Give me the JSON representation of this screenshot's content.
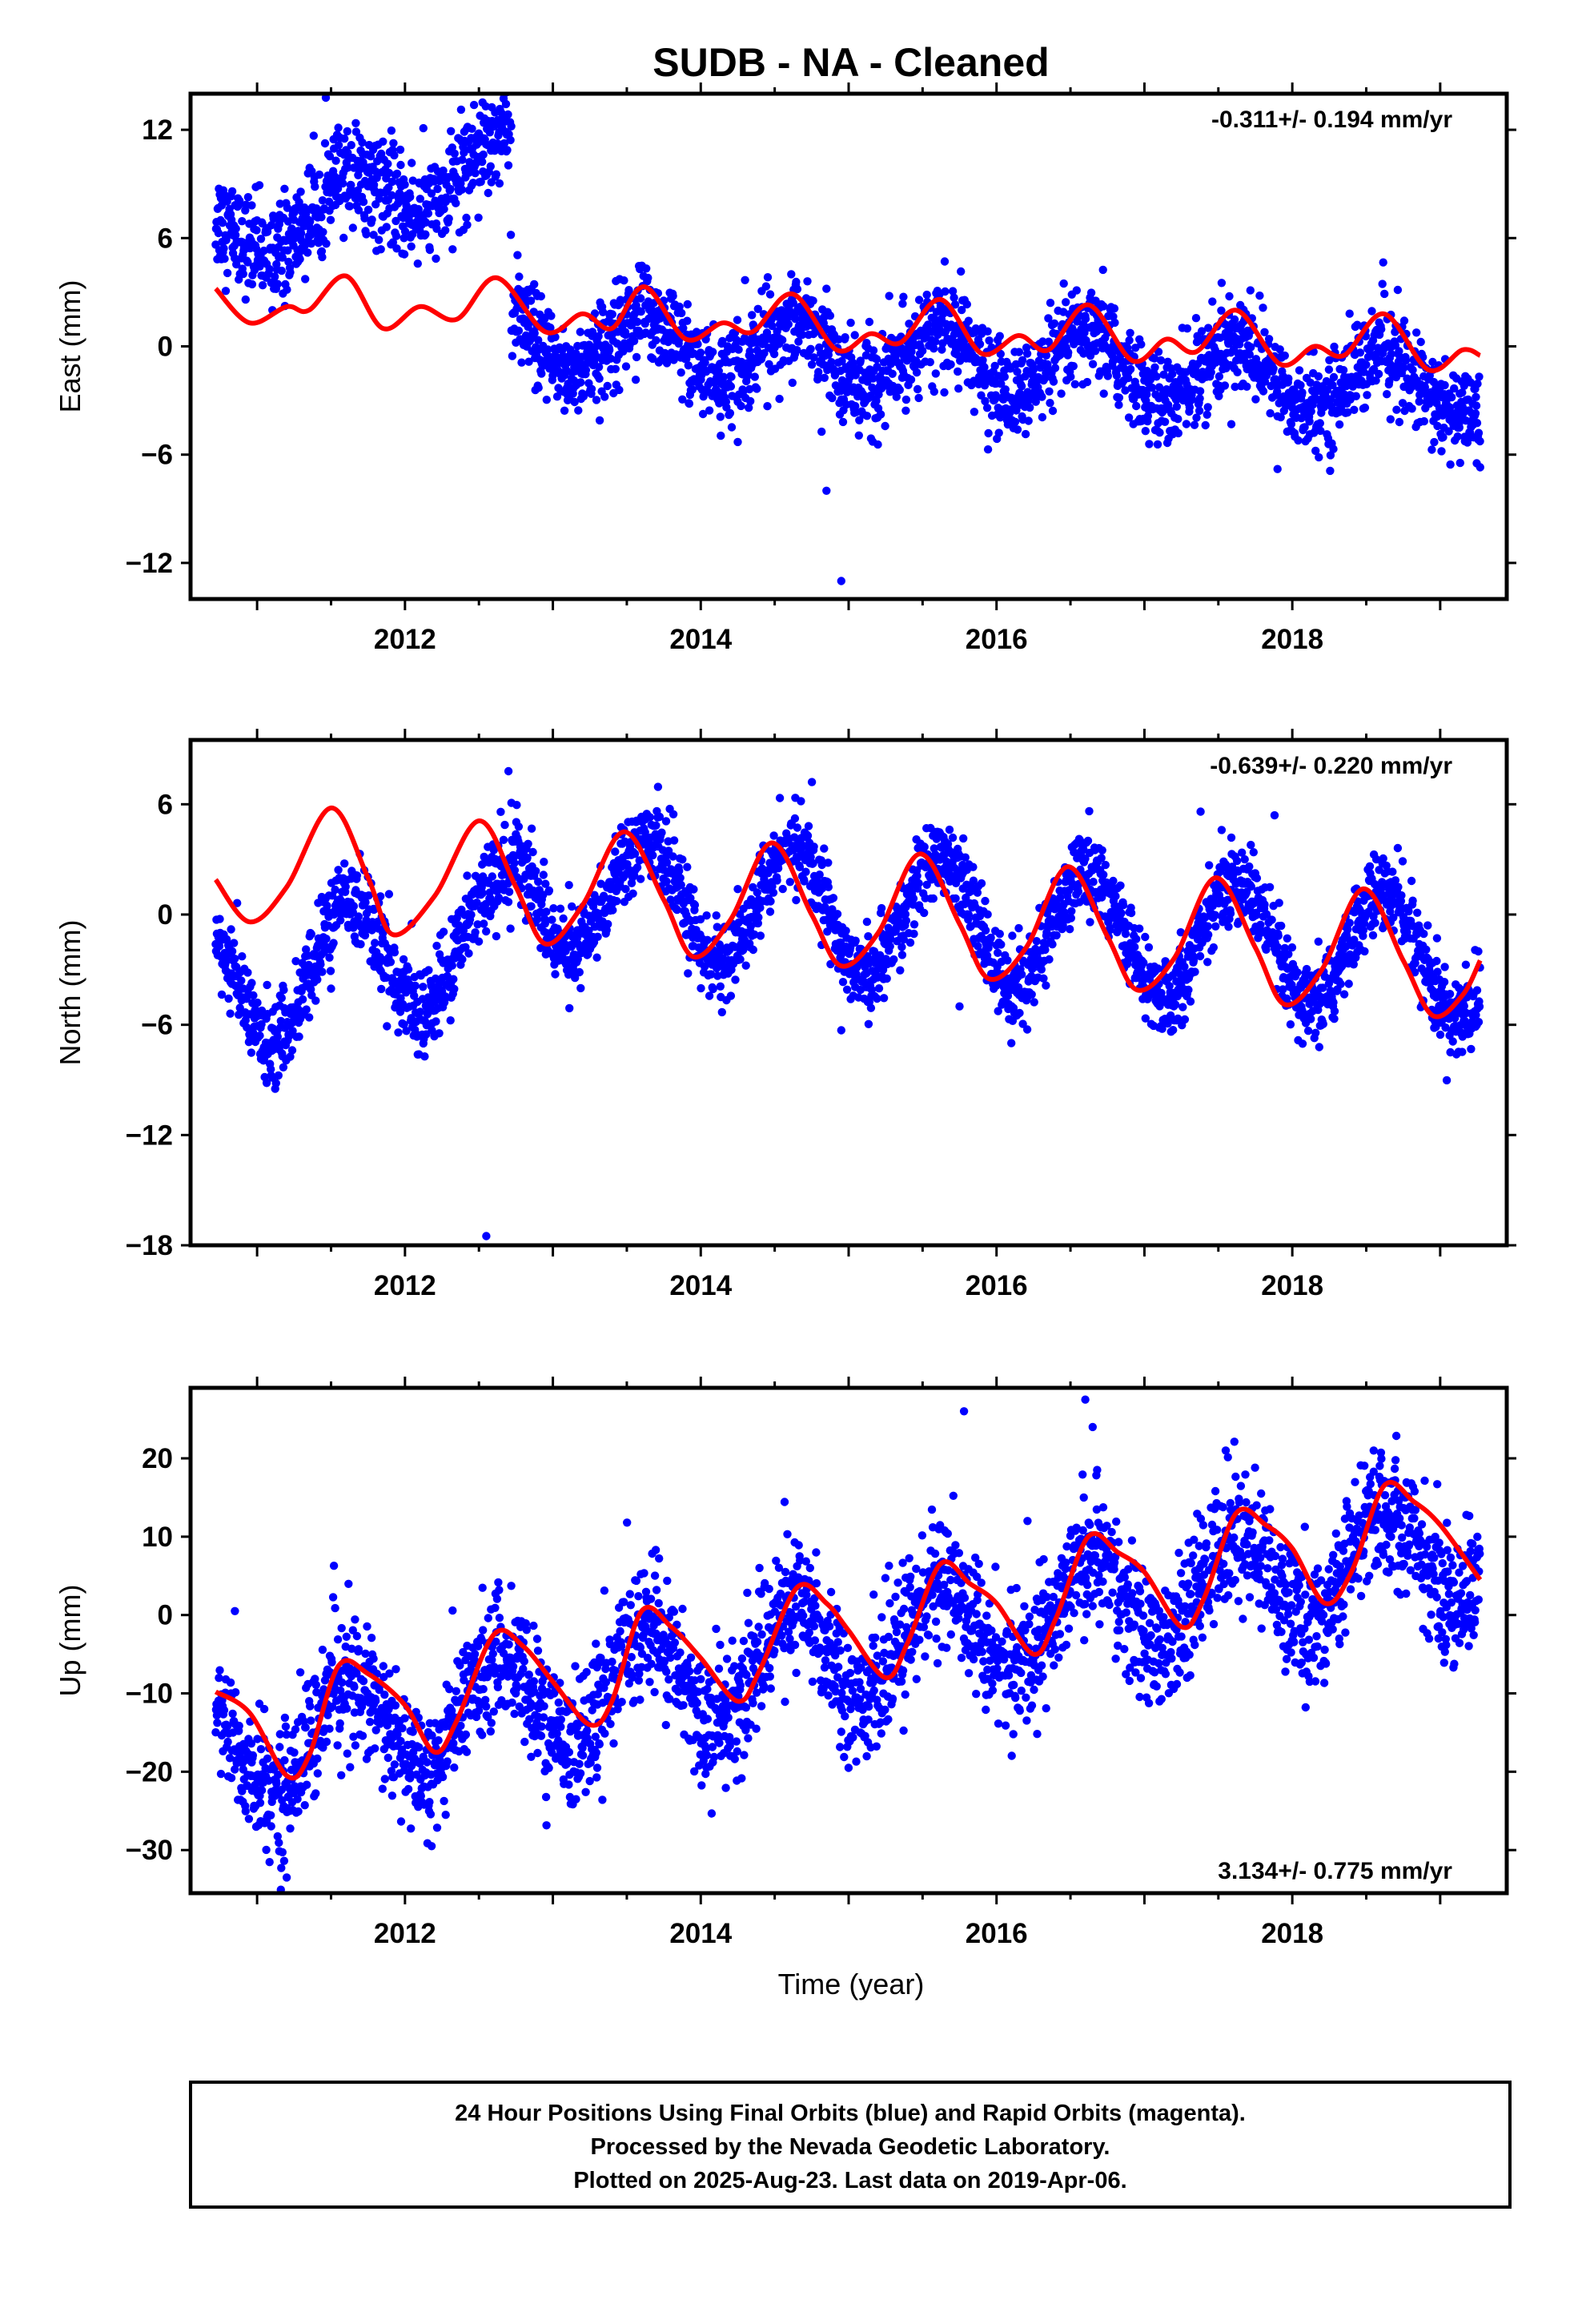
{
  "title": "SUDB  - NA - Cleaned",
  "xlabel": "Time (year)",
  "footer": {
    "line1": "24 Hour Positions Using Final Orbits (blue) and Rapid Orbits (magenta).",
    "line2": "Processed by the Nevada Geodetic Laboratory.",
    "line3": "Plotted on 2025-Aug-23. Last data on 2019-Apr-06."
  },
  "colors": {
    "data": "#0000ff",
    "model": "#ff0000",
    "axis": "#000000"
  },
  "chart_data": [
    {
      "type": "scatter",
      "component": "east",
      "ylabel": "East (mm)",
      "rate_label": "-0.311+/- 0.194 mm/yr",
      "xlim": [
        2010.55,
        2019.45
      ],
      "ylim": [
        -14,
        14
      ],
      "yticks": [
        -12,
        -6,
        0,
        6,
        12
      ],
      "xticks": [
        2012,
        2014,
        2016,
        2018
      ],
      "data_range": [
        2010.72,
        2019.27
      ],
      "series": [
        {
          "kind": "points",
          "color": "#0000ff",
          "segments": [
            {
              "from": 2010.72,
              "to": 2012.72,
              "trend_start": 5.8,
              "trend_end": 10.5,
              "annual_amp": 1.6,
              "noise": 1.4
            },
            {
              "from": 2012.72,
              "to": 2019.27,
              "trend_start": 0.5,
              "trend_end": -2.3,
              "annual_amp": 1.7,
              "noise": 1.3
            }
          ],
          "outliers": [
            [
              2014.25,
              -5.3
            ],
            [
              2014.85,
              -8.0
            ],
            [
              2014.95,
              -13.0
            ],
            [
              2019.27,
              -6.7
            ],
            [
              2017.9,
              -6.8
            ]
          ]
        },
        {
          "kind": "model",
          "color": "#ff0000",
          "points": [
            [
              2010.72,
              3.2
            ],
            [
              2010.95,
              1.3
            ],
            [
              2011.2,
              2.2
            ],
            [
              2011.35,
              2.0
            ],
            [
              2011.6,
              3.9
            ],
            [
              2011.85,
              1.0
            ],
            [
              2012.1,
              2.2
            ],
            [
              2012.35,
              1.5
            ],
            [
              2012.62,
              3.8
            ],
            [
              2012.95,
              0.8
            ],
            [
              2013.2,
              1.8
            ],
            [
              2013.4,
              1.0
            ],
            [
              2013.62,
              3.3
            ],
            [
              2013.9,
              0.4
            ],
            [
              2014.15,
              1.3
            ],
            [
              2014.35,
              0.8
            ],
            [
              2014.62,
              2.9
            ],
            [
              2014.92,
              -0.2
            ],
            [
              2015.15,
              0.7
            ],
            [
              2015.35,
              0.2
            ],
            [
              2015.62,
              2.6
            ],
            [
              2015.9,
              -0.4
            ],
            [
              2016.15,
              0.6
            ],
            [
              2016.35,
              -0.2
            ],
            [
              2016.62,
              2.3
            ],
            [
              2016.92,
              -0.8
            ],
            [
              2017.15,
              0.4
            ],
            [
              2017.35,
              -0.3
            ],
            [
              2017.62,
              2.0
            ],
            [
              2017.92,
              -1.0
            ],
            [
              2018.15,
              0.0
            ],
            [
              2018.35,
              -0.5
            ],
            [
              2018.62,
              1.8
            ],
            [
              2018.92,
              -1.3
            ],
            [
              2019.15,
              -0.2
            ],
            [
              2019.27,
              -0.5
            ]
          ]
        }
      ]
    },
    {
      "type": "scatter",
      "component": "north",
      "ylabel": "North (mm)",
      "rate_label": "-0.639+/- 0.220 mm/yr",
      "xlim": [
        2010.55,
        2019.45
      ],
      "ylim": [
        -18,
        9.5
      ],
      "yticks": [
        -18,
        -12,
        -6,
        0,
        6
      ],
      "xticks": [
        2012,
        2014,
        2016,
        2018
      ],
      "data_range": [
        2010.72,
        2019.27
      ],
      "series": [
        {
          "kind": "points",
          "color": "#0000ff",
          "segments": [
            {
              "from": 2010.72,
              "to": 2012.72,
              "trend_start": -4.0,
              "trend_end": -1.0,
              "annual_amp": 3.4,
              "noise": 1.2
            },
            {
              "from": 2012.72,
              "to": 2019.27,
              "trend_start": 1.5,
              "trend_end": -2.5,
              "annual_amp": 3.3,
              "noise": 1.1
            }
          ],
          "outliers": [
            [
              2012.55,
              -17.5
            ],
            [
              2012.7,
              7.8
            ],
            [
              2015.75,
              -5.0
            ],
            [
              2016.1,
              -7.0
            ],
            [
              2017.38,
              5.6
            ],
            [
              2017.88,
              5.4
            ],
            [
              2014.95,
              -6.3
            ]
          ]
        },
        {
          "kind": "model",
          "color": "#ff0000",
          "points": [
            [
              2010.72,
              1.9
            ],
            [
              2010.95,
              -0.4
            ],
            [
              2011.2,
              1.5
            ],
            [
              2011.5,
              5.8
            ],
            [
              2011.75,
              2.0
            ],
            [
              2011.92,
              -1.1
            ],
            [
              2012.2,
              1.0
            ],
            [
              2012.5,
              5.1
            ],
            [
              2012.75,
              1.5
            ],
            [
              2012.95,
              -1.6
            ],
            [
              2013.2,
              0.5
            ],
            [
              2013.48,
              4.5
            ],
            [
              2013.75,
              0.8
            ],
            [
              2013.95,
              -2.3
            ],
            [
              2014.2,
              -0.3
            ],
            [
              2014.48,
              3.9
            ],
            [
              2014.75,
              0.0
            ],
            [
              2014.95,
              -2.8
            ],
            [
              2015.2,
              -1.0
            ],
            [
              2015.48,
              3.3
            ],
            [
              2015.75,
              -0.5
            ],
            [
              2015.95,
              -3.5
            ],
            [
              2016.2,
              -1.8
            ],
            [
              2016.48,
              2.6
            ],
            [
              2016.75,
              -1.2
            ],
            [
              2016.95,
              -4.1
            ],
            [
              2017.2,
              -2.4
            ],
            [
              2017.48,
              2.0
            ],
            [
              2017.75,
              -1.8
            ],
            [
              2017.95,
              -4.9
            ],
            [
              2018.2,
              -3.0
            ],
            [
              2018.48,
              1.4
            ],
            [
              2018.75,
              -2.5
            ],
            [
              2018.95,
              -5.5
            ],
            [
              2019.15,
              -4.4
            ],
            [
              2019.27,
              -2.5
            ]
          ]
        }
      ]
    },
    {
      "type": "scatter",
      "component": "up",
      "ylabel": "Up (mm)",
      "rate_label": "3.134+/- 0.775 mm/yr",
      "xlim": [
        2010.55,
        2019.45
      ],
      "ylim": [
        -35.5,
        29
      ],
      "yticks": [
        -30,
        -20,
        -10,
        0,
        10,
        20
      ],
      "xticks": [
        2012,
        2014,
        2016,
        2018
      ],
      "data_range": [
        2010.72,
        2019.27
      ],
      "series": [
        {
          "kind": "points",
          "color": "#0000ff",
          "segments": [
            {
              "from": 2010.72,
              "to": 2019.27,
              "trend_start": -17.5,
              "trend_end": 9.0,
              "annual_amp": 6.5,
              "noise": 4.2
            }
          ],
          "outliers": [
            [
              2010.85,
              0.5
            ],
            [
              2011.2,
              -33.5
            ],
            [
              2015.78,
              26.0
            ],
            [
              2016.6,
              27.5
            ],
            [
              2016.65,
              24.0
            ],
            [
              2017.55,
              21.0
            ],
            [
              2018.55,
              21.0
            ],
            [
              2012.18,
              -29.5
            ],
            [
              2013.3,
              -19.5
            ]
          ]
        },
        {
          "kind": "model",
          "color": "#ff0000",
          "points": [
            [
              2010.72,
              -9.8
            ],
            [
              2010.95,
              -12.5
            ],
            [
              2011.2,
              -20.5
            ],
            [
              2011.35,
              -18.0
            ],
            [
              2011.55,
              -6.5
            ],
            [
              2011.75,
              -7.5
            ],
            [
              2012.0,
              -11.5
            ],
            [
              2012.2,
              -17.5
            ],
            [
              2012.35,
              -13.5
            ],
            [
              2012.6,
              -2.5
            ],
            [
              2012.8,
              -4.0
            ],
            [
              2013.0,
              -8.5
            ],
            [
              2013.25,
              -14.0
            ],
            [
              2013.4,
              -11.0
            ],
            [
              2013.6,
              0.5
            ],
            [
              2013.8,
              -1.5
            ],
            [
              2014.0,
              -5.5
            ],
            [
              2014.25,
              -11.0
            ],
            [
              2014.4,
              -7.0
            ],
            [
              2014.65,
              3.5
            ],
            [
              2014.85,
              1.5
            ],
            [
              2015.0,
              -2.0
            ],
            [
              2015.25,
              -8.0
            ],
            [
              2015.4,
              -3.5
            ],
            [
              2015.62,
              6.5
            ],
            [
              2015.82,
              4.0
            ],
            [
              2016.0,
              1.5
            ],
            [
              2016.25,
              -5.0
            ],
            [
              2016.4,
              -0.5
            ],
            [
              2016.62,
              10.0
            ],
            [
              2016.82,
              8.0
            ],
            [
              2017.0,
              5.5
            ],
            [
              2017.25,
              -1.5
            ],
            [
              2017.4,
              2.0
            ],
            [
              2017.62,
              13.0
            ],
            [
              2017.82,
              11.5
            ],
            [
              2018.0,
              8.5
            ],
            [
              2018.22,
              1.5
            ],
            [
              2018.4,
              5.5
            ],
            [
              2018.62,
              16.5
            ],
            [
              2018.82,
              14.5
            ],
            [
              2019.0,
              11.5
            ],
            [
              2019.27,
              4.5
            ]
          ]
        }
      ]
    }
  ]
}
